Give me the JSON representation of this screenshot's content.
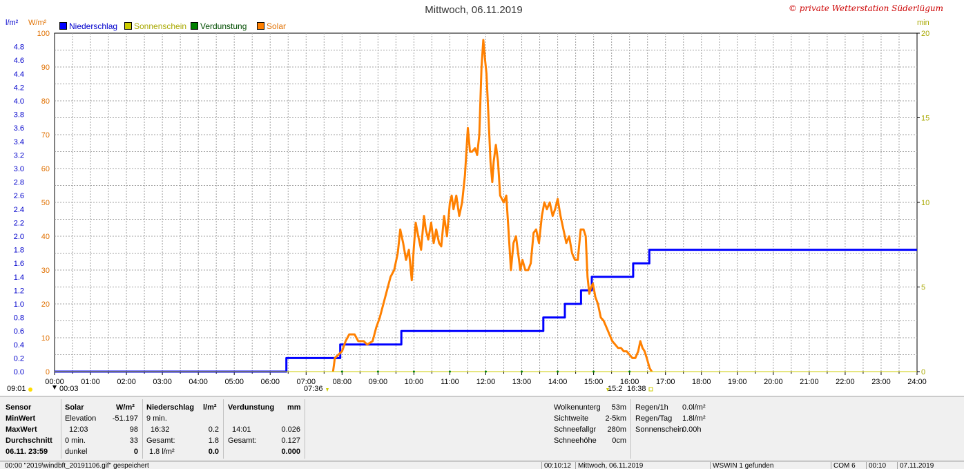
{
  "title": "Mittwoch, 06.11.2019",
  "copyright": "© private Wetterstation Süderlügum",
  "units": {
    "left_a": "l/m²",
    "left_b": "W/m²",
    "right": "min"
  },
  "legend": [
    {
      "label": "Niederschlag",
      "color": "#0000ff",
      "text_color": "#0000cc"
    },
    {
      "label": "Sonnenschein",
      "color": "#cccc00",
      "text_color": "#a8a800"
    },
    {
      "label": "Verdunstung",
      "color": "#008000",
      "text_color": "#004d00"
    },
    {
      "label": "Solar",
      "color": "#ff8000",
      "text_color": "#e07000"
    }
  ],
  "axis_labels": {
    "sun_marker_left": "09:01",
    "min_marker": "00:03",
    "sunrise": "07:36",
    "sunset_a": "15:2",
    "sunset_b": "16:38"
  },
  "chart_data": {
    "type": "line",
    "title": "Mittwoch, 06.11.2019",
    "x_ticks": [
      "00:00",
      "01:00",
      "02:00",
      "03:00",
      "04:00",
      "05:00",
      "06:00",
      "07:00",
      "08:00",
      "09:00",
      "10:00",
      "11:00",
      "12:00",
      "13:00",
      "14:00",
      "15:00",
      "16:00",
      "17:00",
      "18:00",
      "19:00",
      "20:00",
      "21:00",
      "22:00",
      "23:00",
      "24:00"
    ],
    "xlim": [
      0,
      24
    ],
    "y_left_precip": {
      "unit": "l/m²",
      "ylim": [
        0,
        5
      ],
      "ticks": [
        "0.0",
        "0.2",
        "0.4",
        "0.6",
        "0.8",
        "1.0",
        "1.2",
        "1.4",
        "1.6",
        "1.8",
        "2.0",
        "2.2",
        "2.4",
        "2.6",
        "2.8",
        "3.0",
        "3.2",
        "3.4",
        "3.6",
        "3.8",
        "4.0",
        "4.2",
        "4.4",
        "4.6",
        "4.8"
      ]
    },
    "y_left_solar": {
      "unit": "W/m²",
      "ylim": [
        0,
        100
      ],
      "ticks": [
        "0",
        "10",
        "20",
        "30",
        "40",
        "50",
        "60",
        "70",
        "80",
        "90",
        "100"
      ]
    },
    "y_right": {
      "unit": "min",
      "ylim": [
        0,
        20
      ],
      "ticks": [
        "0",
        "5",
        "10",
        "15",
        "20"
      ]
    },
    "grid": true,
    "series": [
      {
        "name": "Niederschlag",
        "color": "#0000ff",
        "axis": "precip",
        "step": true,
        "points": [
          [
            0,
            0
          ],
          [
            6.45,
            0
          ],
          [
            6.45,
            0.2
          ],
          [
            7.95,
            0.2
          ],
          [
            7.95,
            0.4
          ],
          [
            9.65,
            0.4
          ],
          [
            9.65,
            0.6
          ],
          [
            13.6,
            0.6
          ],
          [
            13.6,
            0.8
          ],
          [
            14.2,
            0.8
          ],
          [
            14.2,
            1.0
          ],
          [
            14.65,
            1.0
          ],
          [
            14.65,
            1.2
          ],
          [
            14.95,
            1.2
          ],
          [
            14.95,
            1.4
          ],
          [
            16.1,
            1.4
          ],
          [
            16.1,
            1.6
          ],
          [
            16.55,
            1.6
          ],
          [
            16.55,
            1.8
          ],
          [
            24,
            1.8
          ]
        ]
      },
      {
        "name": "Solar",
        "color": "#ff8000",
        "axis": "solar",
        "points": [
          [
            7.75,
            0
          ],
          [
            7.8,
            4
          ],
          [
            7.9,
            5
          ],
          [
            8.0,
            6
          ],
          [
            8.1,
            9
          ],
          [
            8.2,
            11
          ],
          [
            8.35,
            11
          ],
          [
            8.45,
            9
          ],
          [
            8.6,
            9
          ],
          [
            8.7,
            8
          ],
          [
            8.85,
            9
          ],
          [
            8.95,
            13
          ],
          [
            9.05,
            16
          ],
          [
            9.15,
            20
          ],
          [
            9.25,
            24
          ],
          [
            9.35,
            28
          ],
          [
            9.45,
            30
          ],
          [
            9.55,
            35
          ],
          [
            9.62,
            42
          ],
          [
            9.7,
            38
          ],
          [
            9.78,
            33
          ],
          [
            9.86,
            36
          ],
          [
            9.94,
            27
          ],
          [
            10.0,
            37
          ],
          [
            10.05,
            44
          ],
          [
            10.12,
            40
          ],
          [
            10.2,
            36
          ],
          [
            10.28,
            46
          ],
          [
            10.33,
            42
          ],
          [
            10.4,
            39
          ],
          [
            10.48,
            44
          ],
          [
            10.55,
            38
          ],
          [
            10.62,
            42
          ],
          [
            10.7,
            38
          ],
          [
            10.76,
            37
          ],
          [
            10.84,
            46
          ],
          [
            10.92,
            40
          ],
          [
            11.0,
            50
          ],
          [
            11.05,
            52
          ],
          [
            11.1,
            48
          ],
          [
            11.18,
            52
          ],
          [
            11.26,
            46
          ],
          [
            11.34,
            50
          ],
          [
            11.42,
            58
          ],
          [
            11.5,
            72
          ],
          [
            11.56,
            65
          ],
          [
            11.62,
            65
          ],
          [
            11.7,
            66
          ],
          [
            11.76,
            64
          ],
          [
            11.82,
            70
          ],
          [
            11.88,
            90
          ],
          [
            11.93,
            98
          ],
          [
            11.98,
            92
          ],
          [
            12.02,
            88
          ],
          [
            12.08,
            74
          ],
          [
            12.13,
            62
          ],
          [
            12.18,
            56
          ],
          [
            12.22,
            62
          ],
          [
            12.28,
            67
          ],
          [
            12.34,
            62
          ],
          [
            12.4,
            52
          ],
          [
            12.5,
            50
          ],
          [
            12.57,
            52
          ],
          [
            12.63,
            42
          ],
          [
            12.7,
            30
          ],
          [
            12.77,
            38
          ],
          [
            12.84,
            40
          ],
          [
            12.9,
            35
          ],
          [
            12.96,
            30
          ],
          [
            13.02,
            33
          ],
          [
            13.1,
            30
          ],
          [
            13.18,
            30
          ],
          [
            13.25,
            32
          ],
          [
            13.33,
            41
          ],
          [
            13.4,
            42
          ],
          [
            13.48,
            38
          ],
          [
            13.56,
            46
          ],
          [
            13.63,
            50
          ],
          [
            13.7,
            48
          ],
          [
            13.78,
            50
          ],
          [
            13.86,
            46
          ],
          [
            13.93,
            48
          ],
          [
            14.0,
            51
          ],
          [
            14.08,
            46
          ],
          [
            14.16,
            42
          ],
          [
            14.24,
            38
          ],
          [
            14.32,
            40
          ],
          [
            14.4,
            35
          ],
          [
            14.48,
            33
          ],
          [
            14.56,
            33
          ],
          [
            14.64,
            42
          ],
          [
            14.72,
            42
          ],
          [
            14.78,
            40
          ],
          [
            14.83,
            28
          ],
          [
            14.88,
            23
          ],
          [
            14.93,
            25
          ],
          [
            14.98,
            26
          ],
          [
            15.05,
            22
          ],
          [
            15.12,
            20
          ],
          [
            15.2,
            16
          ],
          [
            15.28,
            15
          ],
          [
            15.36,
            13
          ],
          [
            15.44,
            11
          ],
          [
            15.52,
            9
          ],
          [
            15.6,
            8
          ],
          [
            15.68,
            7
          ],
          [
            15.76,
            7
          ],
          [
            15.84,
            6
          ],
          [
            15.92,
            6
          ],
          [
            16.0,
            5
          ],
          [
            16.08,
            4
          ],
          [
            16.16,
            4
          ],
          [
            16.24,
            6
          ],
          [
            16.3,
            9
          ],
          [
            16.36,
            7
          ],
          [
            16.42,
            6
          ],
          [
            16.48,
            4
          ],
          [
            16.56,
            1
          ],
          [
            16.62,
            0
          ]
        ]
      },
      {
        "name": "Verdunstung",
        "color": "#008000",
        "axis": "precip",
        "points": [
          [
            0,
            0
          ],
          [
            24,
            0
          ]
        ]
      },
      {
        "name": "Sonnenschein",
        "color": "#cccc00",
        "axis": "sun",
        "points": [
          [
            0,
            0
          ],
          [
            24,
            0
          ]
        ]
      }
    ]
  },
  "panel": {
    "sensor": {
      "header": "Sensor",
      "rows": [
        "MinWert",
        "MaxWert",
        "Durchschnitt",
        "06.11.  23:59"
      ]
    },
    "solar": {
      "header": "Solar",
      "unit": "W/m²",
      "rows": [
        {
          "a": "Elevation",
          "b": "-51.197"
        },
        {
          "a": "12:03",
          "b": "98"
        },
        {
          "a": "0 min.",
          "b": "33"
        },
        {
          "a": "dunkel",
          "b": "0"
        }
      ]
    },
    "niederschlag": {
      "header": "Niederschlag",
      "unit": "l/m²",
      "rows": [
        {
          "a": "9 min.",
          "b": ""
        },
        {
          "a": "16:32",
          "b": "0.2"
        },
        {
          "a": "Gesamt:",
          "b": "1.8"
        },
        {
          "a": "1.8 l/m²",
          "b": "0.0"
        }
      ]
    },
    "verdunstung": {
      "header": "Verdunstung",
      "unit": "mm",
      "rows": [
        {
          "a": "",
          "b": ""
        },
        {
          "a": "14:01",
          "b": "0.026"
        },
        {
          "a": "Gesamt:",
          "b": "0.127"
        },
        {
          "a": "",
          "b": "0.000"
        }
      ]
    },
    "clouds": [
      {
        "label": "Wolkenunterg",
        "value": "53m"
      },
      {
        "label": "Sichtweite",
        "value": "2-5km"
      },
      {
        "label": "Schneefallgr",
        "value": "280m"
      },
      {
        "label": "Schneehöhe",
        "value": "0cm"
      }
    ],
    "rain": [
      {
        "label": "Regen/1h",
        "value": "0.0l/m²"
      },
      {
        "label": "Regen/Tag",
        "value": "1.8l/m²"
      },
      {
        "label": "Sonnenschein",
        "value": "0.00h"
      }
    ]
  },
  "status_bar": {
    "left": "00:00  \"2019\\windbft_20191106.gif\" gespeichert",
    "time": "00:10:12",
    "date": "Mittwoch, 06.11.2019",
    "found": "WSWIN 1 gefunden",
    "com": "COM 6",
    "clock": "00:10",
    "date2": "07.11.2019"
  }
}
